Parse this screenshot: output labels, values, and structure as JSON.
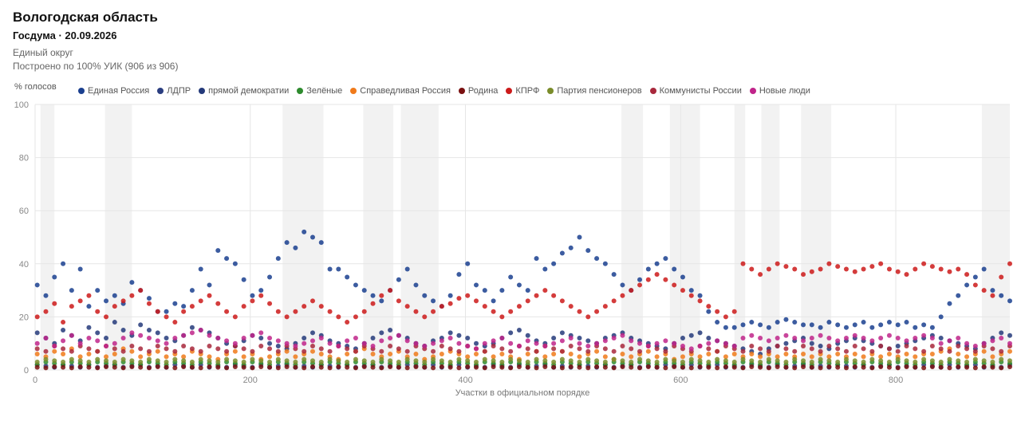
{
  "header": {
    "title": "Вологодская область",
    "subtitle": "Госдума · 20.09.2026",
    "district": "Единый округ",
    "coverage": "Построено по 100% УИК (906 из 906)"
  },
  "chart_data": {
    "type": "scatter",
    "ylabel": "% голосов",
    "xlabel": "Участки в официальном порядке",
    "xlim": [
      0,
      906
    ],
    "ylim": [
      0,
      100
    ],
    "xticks": [
      0,
      200,
      400,
      600,
      800
    ],
    "yticks": [
      0,
      20,
      40,
      60,
      80,
      100
    ],
    "grid": true,
    "legend_position": "top",
    "x_step": 8,
    "series": [
      {
        "name": "Единая Россия",
        "color": "#1a3f8f",
        "values": [
          32,
          28,
          35,
          40,
          30,
          38,
          24,
          30,
          26,
          28,
          25,
          33,
          30,
          27,
          22,
          22,
          25,
          24,
          30,
          38,
          32,
          45,
          42,
          40,
          34,
          28,
          30,
          35,
          42,
          48,
          46,
          52,
          50,
          48,
          38,
          38,
          35,
          32,
          30,
          28,
          26,
          30,
          34,
          38,
          32,
          28,
          26,
          24,
          28,
          36,
          40,
          32,
          30,
          26,
          30,
          35,
          32,
          30,
          42,
          38,
          40,
          44,
          46,
          50,
          45,
          42,
          40,
          36,
          32,
          30,
          34,
          38,
          40,
          42,
          38,
          35,
          30,
          28,
          22,
          18,
          16,
          16,
          17,
          18,
          17,
          16,
          18,
          19,
          18,
          17,
          17,
          16,
          18,
          17,
          16,
          17,
          18,
          16,
          17,
          18,
          17,
          18,
          16,
          17,
          16,
          20,
          25,
          28,
          32,
          35,
          38,
          30,
          28,
          26,
          24,
          22,
          22,
          30,
          28,
          25
        ]
      },
      {
        "name": "ЛДПР",
        "color": "#2b3e80",
        "values": [
          2,
          1.5,
          1,
          2,
          1.5,
          1,
          2,
          1,
          1.5,
          2,
          1,
          1.5,
          2,
          1,
          1.5,
          1,
          2,
          1.5,
          1,
          2,
          1,
          1.5,
          1,
          2,
          1.5,
          1,
          2,
          1,
          1.5,
          2,
          1,
          1.5,
          1,
          2,
          1.5,
          1,
          2,
          1,
          1.5,
          2,
          1,
          1.5,
          1,
          2,
          1.5,
          1,
          2,
          1,
          1.5,
          2,
          1,
          1.5,
          1,
          2,
          1.5,
          1,
          2,
          1,
          1.5,
          2,
          1,
          1.5,
          1,
          2,
          1.5,
          1,
          2,
          1,
          1.5,
          2,
          1,
          1.5,
          1,
          2,
          1.5,
          1,
          2,
          1,
          1.5,
          2,
          1,
          1.5,
          1,
          2,
          1.5,
          1,
          2,
          1,
          1.5,
          2,
          1,
          1.5,
          1,
          2,
          1.5,
          1,
          2,
          1,
          1.5,
          2,
          1,
          1.5,
          1,
          2,
          1.5,
          1,
          2,
          1,
          1.5,
          2,
          1,
          1.5,
          1,
          2,
          1.5,
          1,
          2,
          1,
          1.5,
          2
        ]
      },
      {
        "name": "прямой демократии",
        "color": "#243a7a",
        "values": [
          14,
          12,
          10,
          15,
          13,
          11,
          16,
          14,
          12,
          18,
          15,
          13,
          17,
          15,
          14,
          12,
          11,
          13,
          16,
          15,
          14,
          12,
          10,
          9,
          11,
          13,
          12,
          10,
          9,
          8,
          10,
          12,
          14,
          13,
          11,
          10,
          9,
          8,
          10,
          12,
          14,
          15,
          13,
          12,
          10,
          9,
          11,
          12,
          14,
          13,
          12,
          10,
          9,
          10,
          12,
          14,
          15,
          13,
          11,
          10,
          12,
          14,
          13,
          12,
          11,
          10,
          12,
          13,
          14,
          12,
          11,
          10,
          9,
          8,
          10,
          12,
          13,
          14,
          12,
          11,
          10,
          9,
          8,
          7,
          6,
          8,
          9,
          10,
          11,
          12,
          10,
          9,
          8,
          10,
          11,
          12,
          11,
          10,
          9,
          8,
          9,
          10,
          11,
          12,
          13,
          12,
          11,
          10,
          9,
          8,
          10,
          12,
          14,
          13,
          12,
          11,
          10,
          12,
          14,
          15
        ]
      },
      {
        "name": "Зелёные",
        "color": "#2e8b2e",
        "values": [
          2,
          3,
          2.5,
          2,
          3,
          2.5,
          2,
          3,
          2.5,
          2,
          3,
          2.5,
          2,
          3,
          2.5,
          2,
          3,
          2.5,
          2,
          3,
          2.5,
          2,
          3,
          2.5,
          2,
          3,
          2.5,
          2,
          3,
          2.5,
          2,
          3,
          2.5,
          2,
          3,
          2.5,
          2,
          3,
          2.5,
          2,
          3,
          2.5,
          2,
          3,
          2.5,
          2,
          3,
          2.5,
          2,
          3,
          2.5,
          2,
          3,
          2.5,
          2,
          3,
          2.5,
          2,
          3,
          2.5,
          2,
          3,
          2.5,
          2,
          3,
          2.5,
          2,
          3,
          2.5,
          2,
          3,
          2.5,
          2,
          3,
          2.5,
          2,
          3,
          2.5,
          2,
          3,
          2.5,
          2,
          3,
          2.5,
          2,
          3,
          2.5,
          2,
          3,
          2.5,
          2,
          3,
          2.5,
          2,
          3,
          2.5,
          2,
          3,
          2.5,
          2,
          3,
          2.5,
          2,
          3,
          2.5,
          2,
          3,
          2.5,
          2,
          3,
          2.5,
          2,
          3,
          2.5,
          2,
          3,
          2.5,
          2,
          3
        ]
      },
      {
        "name": "Справедливая Россия",
        "color": "#f07a1a",
        "values": [
          6,
          5,
          7,
          6,
          8,
          5,
          6,
          7,
          5,
          6,
          8,
          7,
          5,
          6,
          7,
          5,
          6,
          5,
          7,
          6,
          5,
          4,
          6,
          7,
          5,
          6,
          4,
          5,
          6,
          7,
          5,
          6,
          7,
          6,
          5,
          4,
          6,
          7,
          8,
          6,
          5,
          6,
          7,
          5,
          6,
          4,
          5,
          6,
          7,
          6,
          5,
          6,
          7,
          5,
          6,
          5,
          4,
          6,
          7,
          5,
          6,
          7,
          6,
          5,
          6,
          7,
          5,
          4,
          6,
          5,
          6,
          7,
          5,
          6,
          4,
          5,
          6,
          5,
          6,
          7,
          5,
          6,
          5,
          6,
          5,
          6,
          5,
          6,
          5,
          6,
          5,
          6,
          5,
          6,
          5,
          6,
          5,
          6,
          5,
          6,
          5,
          6,
          5,
          6,
          6,
          7,
          8,
          6,
          5,
          6,
          7,
          5,
          6,
          7,
          8,
          6,
          5,
          6,
          5,
          6
        ]
      },
      {
        "name": "Родина",
        "color": "#7a1010",
        "values": [
          1,
          0.8,
          1.2,
          1,
          0.8,
          1.2,
          1,
          0.8,
          1.2,
          1,
          0.8,
          1.2,
          1,
          0.8,
          1.2,
          1,
          0.8,
          1.2,
          1,
          0.8,
          1.2,
          1,
          0.8,
          1.2,
          1,
          0.8,
          1.2,
          1,
          0.8,
          1.2,
          1,
          0.8,
          1.2,
          1,
          0.8,
          1.2,
          1,
          0.8,
          1.2,
          1,
          0.8,
          1.2,
          1,
          0.8,
          1.2,
          1,
          0.8,
          1.2,
          1,
          0.8,
          1.2,
          1,
          0.8,
          1.2,
          1,
          0.8,
          1.2,
          1,
          0.8,
          1.2,
          1,
          0.8,
          1.2,
          1,
          0.8,
          1.2,
          1,
          0.8,
          1.2,
          1,
          0.8,
          1.2,
          1,
          0.8,
          1.2,
          1,
          0.8,
          1.2,
          1,
          0.8,
          1.2,
          1,
          0.8,
          1.2,
          1,
          0.8,
          1.2,
          1,
          0.8,
          1.2,
          1,
          0.8,
          1.2,
          1,
          0.8,
          1.2,
          1,
          0.8,
          1.2,
          1,
          0.8,
          1.2,
          1,
          0.8,
          1.2,
          1,
          0.8,
          1.2,
          1,
          0.8,
          1.2,
          1,
          0.8,
          1.2,
          1,
          0.8,
          1.2,
          1
        ]
      },
      {
        "name": "КПРФ",
        "color": "#cc1a1a",
        "values": [
          20,
          22,
          25,
          18,
          24,
          26,
          28,
          22,
          20,
          24,
          26,
          28,
          30,
          25,
          22,
          20,
          18,
          22,
          24,
          26,
          28,
          25,
          22,
          20,
          24,
          26,
          28,
          25,
          22,
          20,
          22,
          24,
          26,
          24,
          22,
          20,
          18,
          20,
          22,
          25,
          28,
          30,
          26,
          24,
          22,
          20,
          22,
          24,
          25,
          27,
          28,
          26,
          24,
          22,
          20,
          22,
          24,
          26,
          28,
          30,
          28,
          26,
          24,
          22,
          20,
          22,
          24,
          26,
          28,
          30,
          32,
          34,
          36,
          34,
          32,
          30,
          28,
          26,
          24,
          22,
          20,
          22,
          40,
          38,
          36,
          38,
          40,
          39,
          38,
          36,
          37,
          38,
          40,
          39,
          38,
          37,
          38,
          39,
          40,
          38,
          37,
          36,
          38,
          40,
          39,
          38,
          37,
          38,
          36,
          32,
          30,
          28,
          35,
          40,
          38,
          34,
          30,
          28,
          25,
          22
        ]
      },
      {
        "name": "Партия пенсионеров",
        "color": "#7a8c2a",
        "values": [
          3,
          4,
          3.5,
          3,
          4,
          3.5,
          3,
          4,
          3.5,
          3,
          4,
          3.5,
          3,
          4,
          3.5,
          3,
          4,
          3.5,
          3,
          4,
          3.5,
          3,
          4,
          3.5,
          3,
          4,
          3.5,
          3,
          4,
          3.5,
          3,
          4,
          3.5,
          3,
          4,
          3.5,
          3,
          4,
          3.5,
          3,
          4,
          3.5,
          3,
          4,
          3.5,
          3,
          4,
          3.5,
          3,
          4,
          3.5,
          3,
          4,
          3.5,
          3,
          4,
          3.5,
          3,
          4,
          3.5,
          3,
          4,
          3.5,
          3,
          4,
          3.5,
          3,
          4,
          3.5,
          3,
          4,
          3.5,
          3,
          4,
          3.5,
          3,
          4,
          3.5,
          3,
          4,
          3.5,
          3,
          4,
          3.5,
          3,
          4,
          3.5,
          3,
          4,
          3.5,
          3,
          4,
          3.5,
          3,
          4,
          3.5,
          3,
          4,
          3.5,
          3,
          4,
          3.5,
          3,
          4,
          3.5,
          3,
          4,
          3.5,
          3,
          4,
          3.5,
          3,
          4,
          3.5,
          3,
          4,
          3.5,
          3,
          4,
          3.5,
          3
        ]
      },
      {
        "name": "Коммунисты России",
        "color": "#a8283c",
        "values": [
          8,
          7,
          9,
          8,
          7,
          9,
          8,
          7,
          9,
          8,
          7,
          9,
          8,
          7,
          9,
          8,
          7,
          9,
          8,
          7,
          9,
          8,
          7,
          9,
          8,
          7,
          9,
          8,
          7,
          9,
          8,
          7,
          9,
          8,
          7,
          9,
          8,
          7,
          9,
          8,
          7,
          9,
          8,
          7,
          9,
          8,
          7,
          9,
          8,
          7,
          9,
          8,
          7,
          9,
          8,
          7,
          9,
          8,
          7,
          9,
          8,
          7,
          9,
          8,
          7,
          9,
          8,
          7,
          9,
          8,
          7,
          9,
          8,
          7,
          9,
          8,
          7,
          9,
          8,
          7,
          9,
          8,
          7,
          9,
          8,
          7,
          9,
          8,
          7,
          9,
          8,
          7,
          9,
          8,
          7,
          9,
          8,
          7,
          9,
          8,
          7,
          9,
          8,
          7,
          9,
          8,
          7,
          9,
          8,
          7,
          9,
          8,
          7,
          9,
          8,
          7,
          9,
          8,
          7,
          9
        ]
      },
      {
        "name": "Новые люди",
        "color": "#c0248a",
        "values": [
          10,
          12,
          9,
          11,
          13,
          10,
          12,
          11,
          9,
          10,
          12,
          14,
          13,
          12,
          11,
          10,
          12,
          13,
          14,
          15,
          13,
          12,
          11,
          10,
          12,
          13,
          14,
          12,
          11,
          10,
          9,
          10,
          11,
          12,
          10,
          9,
          11,
          12,
          10,
          9,
          11,
          12,
          13,
          11,
          10,
          9,
          10,
          11,
          12,
          10,
          9,
          8,
          10,
          11,
          12,
          10,
          9,
          11,
          10,
          9,
          10,
          11,
          12,
          10,
          9,
          10,
          11,
          12,
          13,
          11,
          10,
          9,
          10,
          11,
          10,
          9,
          8,
          9,
          10,
          11,
          10,
          9,
          12,
          13,
          12,
          11,
          12,
          13,
          12,
          11,
          12,
          13,
          12,
          11,
          12,
          13,
          12,
          11,
          12,
          13,
          12,
          11,
          12,
          13,
          12,
          10,
          11,
          12,
          10,
          9,
          10,
          11,
          12,
          10,
          9,
          10,
          11,
          12,
          10,
          9
        ]
      }
    ]
  }
}
